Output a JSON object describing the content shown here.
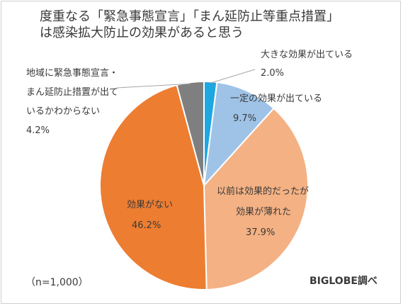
{
  "title_lines": [
    "度重なる「緊急事態宣言」「まん延防止等重点措置」",
    "は感染拡大防止の効果があると思う"
  ],
  "note": "（n=1,000）",
  "source": "BIGLOBE調べ",
  "chart_data": {
    "type": "pie",
    "title": "度重なる「緊急事態宣言」「まん延防止等重点措置」は感染拡大防止の効果があると思う",
    "unit": "%",
    "start_angle": "12 o'clock",
    "direction": "clockwise",
    "slices": [
      {
        "label_lines": [
          "大きな効果が出ている"
        ],
        "value": 2.0,
        "value_text": "2.0%",
        "color": "#1ea7e1"
      },
      {
        "label_lines": [
          "一定の効果が出ている"
        ],
        "value": 9.7,
        "value_text": "9.7%",
        "color": "#9fc3e7"
      },
      {
        "label_lines": [
          "以前は効果的だったが",
          "効果が薄れた"
        ],
        "value": 37.9,
        "value_text": "37.9%",
        "color": "#f4b183"
      },
      {
        "label_lines": [
          "効果がない"
        ],
        "value": 46.2,
        "value_text": "46.2%",
        "color": "#ed7d31"
      },
      {
        "label_lines": [
          "地域に緊急事態宣言・",
          "まん延防止措置が出て",
          "いるかわからない"
        ],
        "value": 4.2,
        "value_text": "4.2%",
        "color": "#7f7f7f"
      }
    ]
  }
}
